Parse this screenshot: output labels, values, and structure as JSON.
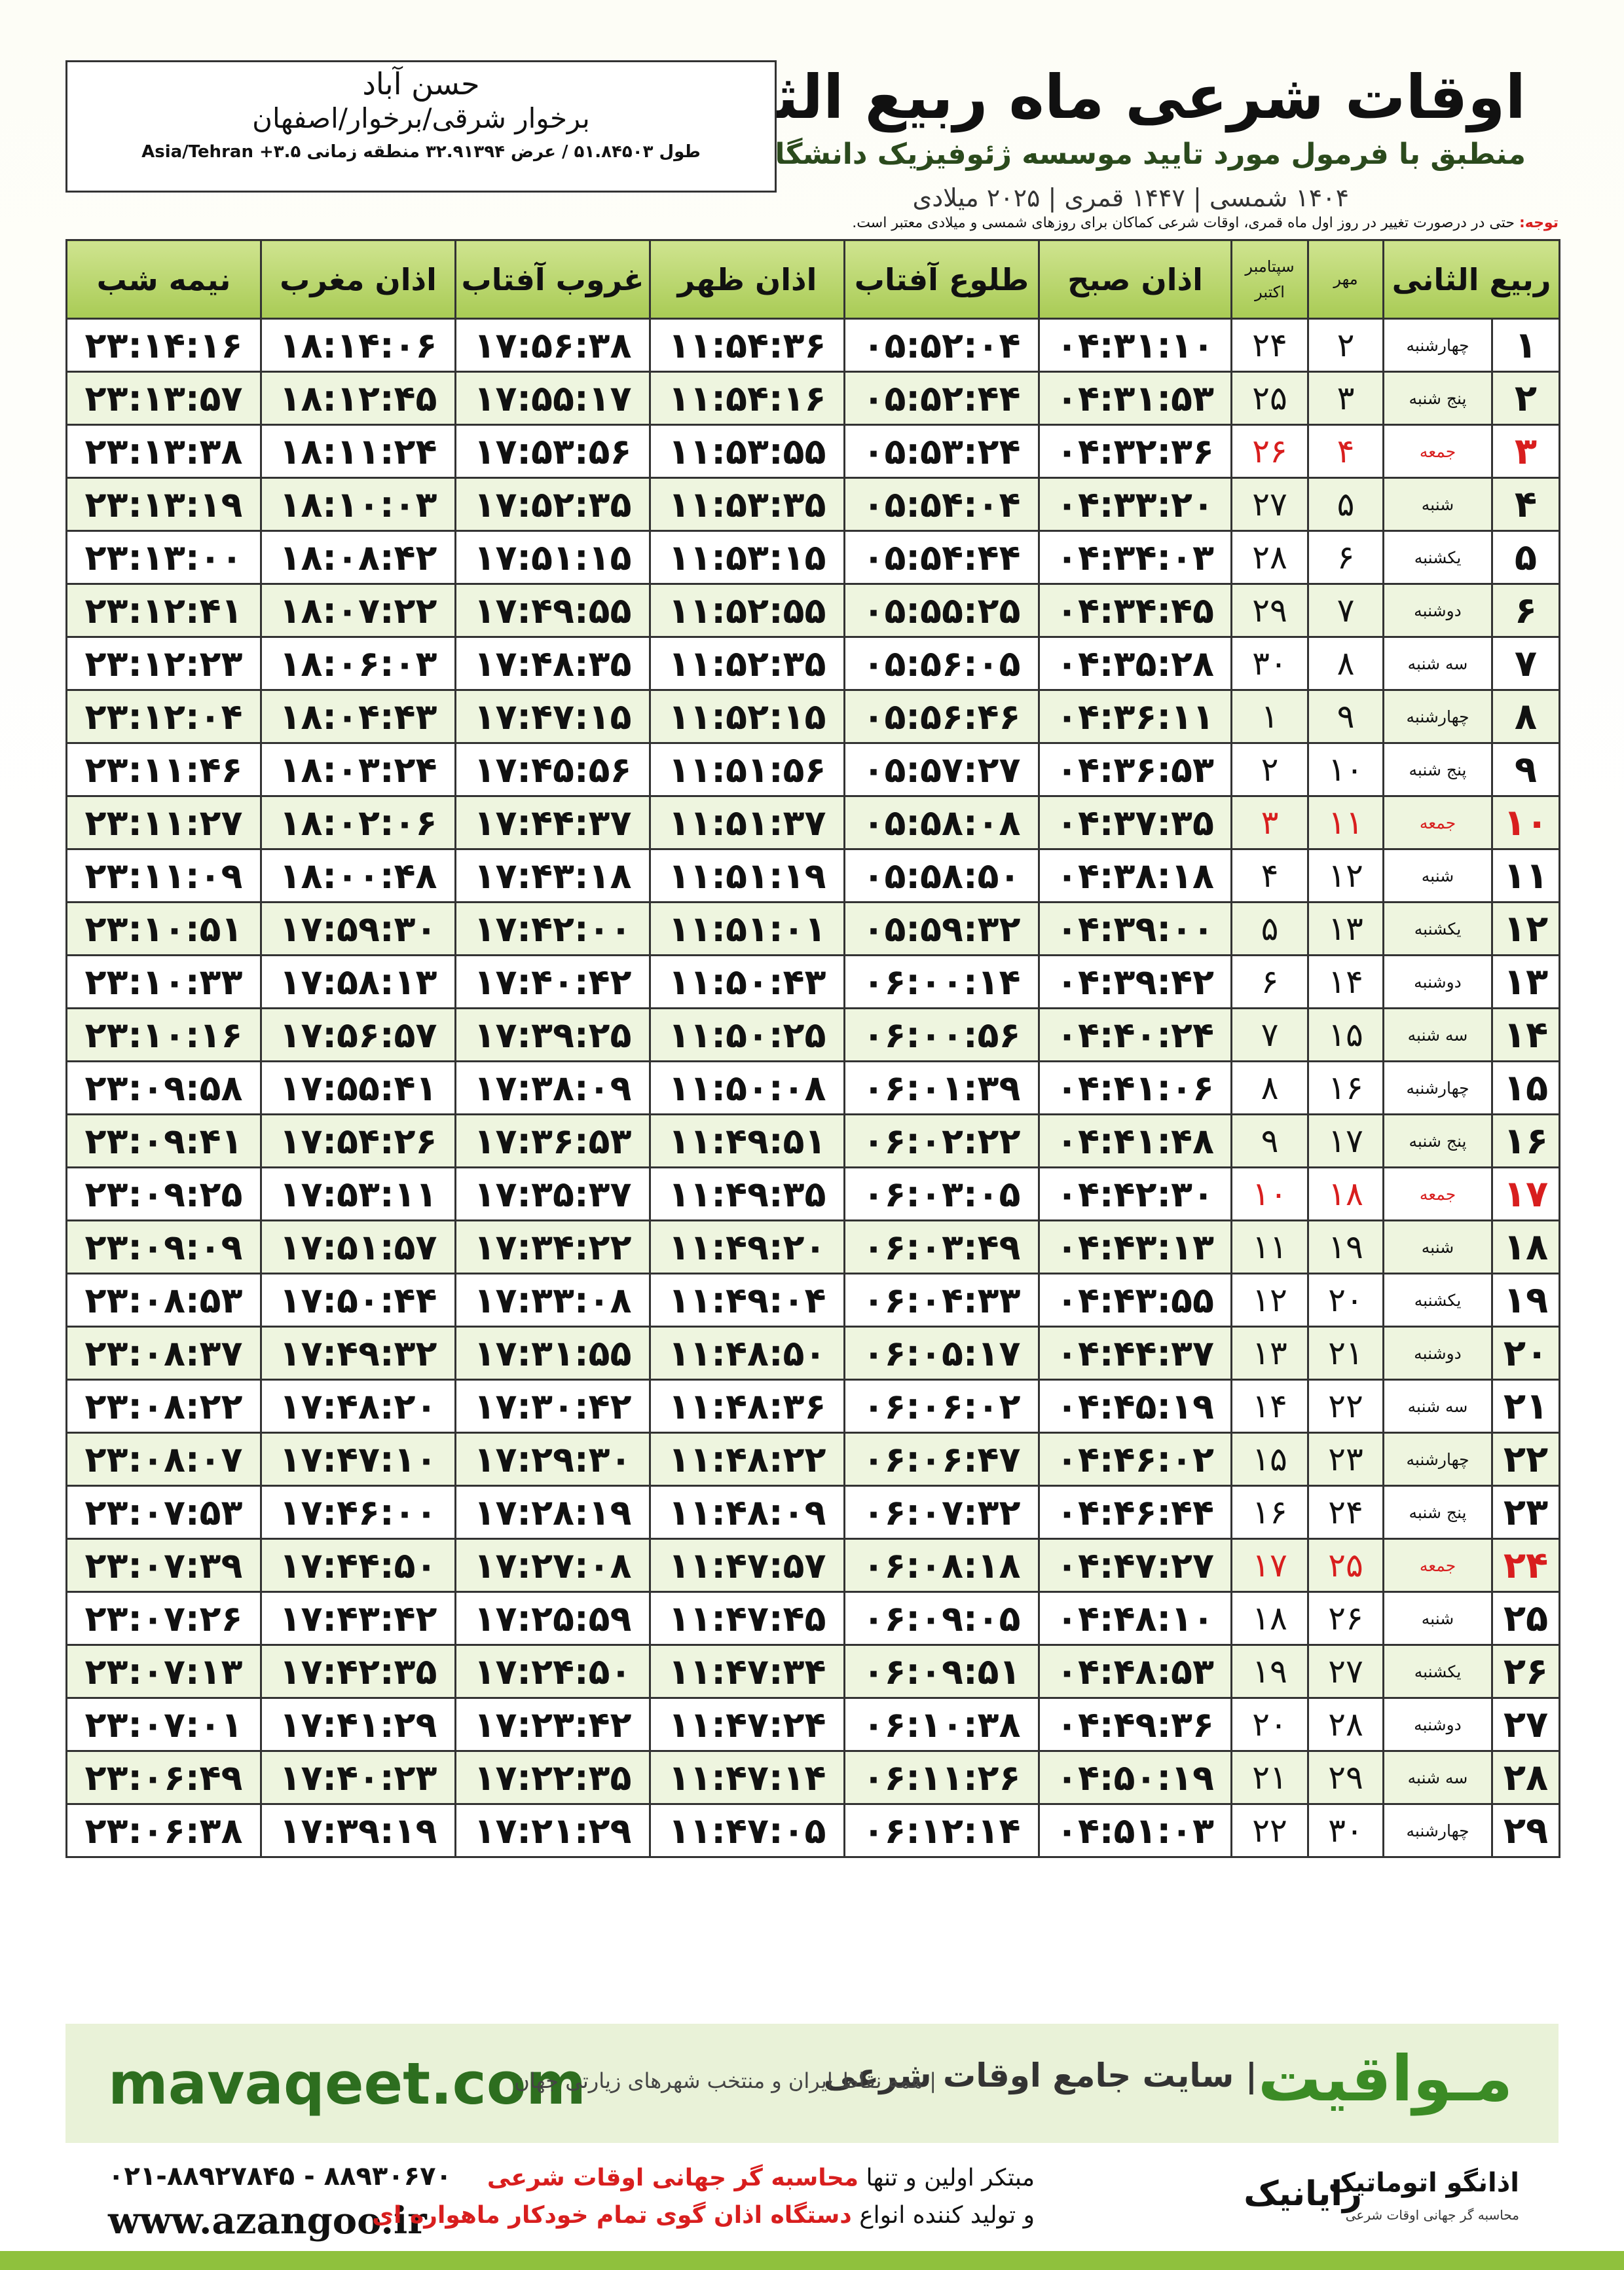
{
  "header": {
    "title": "اوقات شرعی ماه ربیع الثانی",
    "subtitle": "منطبق با فرمول مورد تایید موسسه ژئوفیزیک دانشگاه تهران",
    "dates": "۱۴۰۴ شمسی | ۱۴۴۷ قمری | ۲۰۲۵ میلادی"
  },
  "location": {
    "name": "حسن آباد",
    "region": "برخوار شرقی/برخوار/اصفهان",
    "coords": "طول ۵۱.۸۴۵۰۳ / عرض ۳۲.۹۱۳۹۴ منطقه زمانی ۳.۵+ Asia/Tehran"
  },
  "note": {
    "label": "توجه:",
    "text": "حتی در درصورت تغییر در روز اول ماه قمری، اوقات شرعی کماکان برای روزهای شمسی و میلادی معتبر است."
  },
  "table": {
    "headers": [
      "ربیع الثانی",
      "مهر",
      [
        "سپتامبر",
        "اکتبر"
      ],
      "اذان صبح",
      "طلوع آفتاب",
      "اذان ظهر",
      "غروب آفتاب",
      "اذان مغرب",
      "نیمه شب"
    ],
    "highlight_rows": [
      2,
      9,
      16,
      23
    ],
    "highlight_color": "#d81e1e",
    "rows": [
      [
        "۱",
        "چهارشنبه",
        "۲",
        "۲۴",
        "۰۴:۳۱:۱۰",
        "۰۵:۵۲:۰۴",
        "۱۱:۵۴:۳۶",
        "۱۷:۵۶:۳۸",
        "۱۸:۱۴:۰۶",
        "۲۳:۱۴:۱۶"
      ],
      [
        "۲",
        "پنج شنبه",
        "۳",
        "۲۵",
        "۰۴:۳۱:۵۳",
        "۰۵:۵۲:۴۴",
        "۱۱:۵۴:۱۶",
        "۱۷:۵۵:۱۷",
        "۱۸:۱۲:۴۵",
        "۲۳:۱۳:۵۷"
      ],
      [
        "۳",
        "جمعه",
        "۴",
        "۲۶",
        "۰۴:۳۲:۳۶",
        "۰۵:۵۳:۲۴",
        "۱۱:۵۳:۵۵",
        "۱۷:۵۳:۵۶",
        "۱۸:۱۱:۲۴",
        "۲۳:۱۳:۳۸"
      ],
      [
        "۴",
        "شنبه",
        "۵",
        "۲۷",
        "۰۴:۳۳:۲۰",
        "۰۵:۵۴:۰۴",
        "۱۱:۵۳:۳۵",
        "۱۷:۵۲:۳۵",
        "۱۸:۱۰:۰۳",
        "۲۳:۱۳:۱۹"
      ],
      [
        "۵",
        "یکشنبه",
        "۶",
        "۲۸",
        "۰۴:۳۴:۰۳",
        "۰۵:۵۴:۴۴",
        "۱۱:۵۳:۱۵",
        "۱۷:۵۱:۱۵",
        "۱۸:۰۸:۴۲",
        "۲۳:۱۳:۰۰"
      ],
      [
        "۶",
        "دوشنبه",
        "۷",
        "۲۹",
        "۰۴:۳۴:۴۵",
        "۰۵:۵۵:۲۵",
        "۱۱:۵۲:۵۵",
        "۱۷:۴۹:۵۵",
        "۱۸:۰۷:۲۲",
        "۲۳:۱۲:۴۱"
      ],
      [
        "۷",
        "سه شنبه",
        "۸",
        "۳۰",
        "۰۴:۳۵:۲۸",
        "۰۵:۵۶:۰۵",
        "۱۱:۵۲:۳۵",
        "۱۷:۴۸:۳۵",
        "۱۸:۰۶:۰۳",
        "۲۳:۱۲:۲۳"
      ],
      [
        "۸",
        "چهارشنبه",
        "۹",
        "۱",
        "۰۴:۳۶:۱۱",
        "۰۵:۵۶:۴۶",
        "۱۱:۵۲:۱۵",
        "۱۷:۴۷:۱۵",
        "۱۸:۰۴:۴۳",
        "۲۳:۱۲:۰۴"
      ],
      [
        "۹",
        "پنج شنبه",
        "۱۰",
        "۲",
        "۰۴:۳۶:۵۳",
        "۰۵:۵۷:۲۷",
        "۱۱:۵۱:۵۶",
        "۱۷:۴۵:۵۶",
        "۱۸:۰۳:۲۴",
        "۲۳:۱۱:۴۶"
      ],
      [
        "۱۰",
        "جمعه",
        "۱۱",
        "۳",
        "۰۴:۳۷:۳۵",
        "۰۵:۵۸:۰۸",
        "۱۱:۵۱:۳۷",
        "۱۷:۴۴:۳۷",
        "۱۸:۰۲:۰۶",
        "۲۳:۱۱:۲۷"
      ],
      [
        "۱۱",
        "شنبه",
        "۱۲",
        "۴",
        "۰۴:۳۸:۱۸",
        "۰۵:۵۸:۵۰",
        "۱۱:۵۱:۱۹",
        "۱۷:۴۳:۱۸",
        "۱۸:۰۰:۴۸",
        "۲۳:۱۱:۰۹"
      ],
      [
        "۱۲",
        "یکشنبه",
        "۱۳",
        "۵",
        "۰۴:۳۹:۰۰",
        "۰۵:۵۹:۳۲",
        "۱۱:۵۱:۰۱",
        "۱۷:۴۲:۰۰",
        "۱۷:۵۹:۳۰",
        "۲۳:۱۰:۵۱"
      ],
      [
        "۱۳",
        "دوشنبه",
        "۱۴",
        "۶",
        "۰۴:۳۹:۴۲",
        "۰۶:۰۰:۱۴",
        "۱۱:۵۰:۴۳",
        "۱۷:۴۰:۴۲",
        "۱۷:۵۸:۱۳",
        "۲۳:۱۰:۳۳"
      ],
      [
        "۱۴",
        "سه شنبه",
        "۱۵",
        "۷",
        "۰۴:۴۰:۲۴",
        "۰۶:۰۰:۵۶",
        "۱۱:۵۰:۲۵",
        "۱۷:۳۹:۲۵",
        "۱۷:۵۶:۵۷",
        "۲۳:۱۰:۱۶"
      ],
      [
        "۱۵",
        "چهارشنبه",
        "۱۶",
        "۸",
        "۰۴:۴۱:۰۶",
        "۰۶:۰۱:۳۹",
        "۱۱:۵۰:۰۸",
        "۱۷:۳۸:۰۹",
        "۱۷:۵۵:۴۱",
        "۲۳:۰۹:۵۸"
      ],
      [
        "۱۶",
        "پنج شنبه",
        "۱۷",
        "۹",
        "۰۴:۴۱:۴۸",
        "۰۶:۰۲:۲۲",
        "۱۱:۴۹:۵۱",
        "۱۷:۳۶:۵۳",
        "۱۷:۵۴:۲۶",
        "۲۳:۰۹:۴۱"
      ],
      [
        "۱۷",
        "جمعه",
        "۱۸",
        "۱۰",
        "۰۴:۴۲:۳۰",
        "۰۶:۰۳:۰۵",
        "۱۱:۴۹:۳۵",
        "۱۷:۳۵:۳۷",
        "۱۷:۵۳:۱۱",
        "۲۳:۰۹:۲۵"
      ],
      [
        "۱۸",
        "شنبه",
        "۱۹",
        "۱۱",
        "۰۴:۴۳:۱۳",
        "۰۶:۰۳:۴۹",
        "۱۱:۴۹:۲۰",
        "۱۷:۳۴:۲۲",
        "۱۷:۵۱:۵۷",
        "۲۳:۰۹:۰۹"
      ],
      [
        "۱۹",
        "یکشنبه",
        "۲۰",
        "۱۲",
        "۰۴:۴۳:۵۵",
        "۰۶:۰۴:۳۳",
        "۱۱:۴۹:۰۴",
        "۱۷:۳۳:۰۸",
        "۱۷:۵۰:۴۴",
        "۲۳:۰۸:۵۳"
      ],
      [
        "۲۰",
        "دوشنبه",
        "۲۱",
        "۱۳",
        "۰۴:۴۴:۳۷",
        "۰۶:۰۵:۱۷",
        "۱۱:۴۸:۵۰",
        "۱۷:۳۱:۵۵",
        "۱۷:۴۹:۳۲",
        "۲۳:۰۸:۳۷"
      ],
      [
        "۲۱",
        "سه شنبه",
        "۲۲",
        "۱۴",
        "۰۴:۴۵:۱۹",
        "۰۶:۰۶:۰۲",
        "۱۱:۴۸:۳۶",
        "۱۷:۳۰:۴۲",
        "۱۷:۴۸:۲۰",
        "۲۳:۰۸:۲۲"
      ],
      [
        "۲۲",
        "چهارشنبه",
        "۲۳",
        "۱۵",
        "۰۴:۴۶:۰۲",
        "۰۶:۰۶:۴۷",
        "۱۱:۴۸:۲۲",
        "۱۷:۲۹:۳۰",
        "۱۷:۴۷:۱۰",
        "۲۳:۰۸:۰۷"
      ],
      [
        "۲۳",
        "پنج شنبه",
        "۲۴",
        "۱۶",
        "۰۴:۴۶:۴۴",
        "۰۶:۰۷:۳۲",
        "۱۱:۴۸:۰۹",
        "۱۷:۲۸:۱۹",
        "۱۷:۴۶:۰۰",
        "۲۳:۰۷:۵۳"
      ],
      [
        "۲۴",
        "جمعه",
        "۲۵",
        "۱۷",
        "۰۴:۴۷:۲۷",
        "۰۶:۰۸:۱۸",
        "۱۱:۴۷:۵۷",
        "۱۷:۲۷:۰۸",
        "۱۷:۴۴:۵۰",
        "۲۳:۰۷:۳۹"
      ],
      [
        "۲۵",
        "شنبه",
        "۲۶",
        "۱۸",
        "۰۴:۴۸:۱۰",
        "۰۶:۰۹:۰۵",
        "۱۱:۴۷:۴۵",
        "۱۷:۲۵:۵۹",
        "۱۷:۴۳:۴۲",
        "۲۳:۰۷:۲۶"
      ],
      [
        "۲۶",
        "یکشنبه",
        "۲۷",
        "۱۹",
        "۰۴:۴۸:۵۳",
        "۰۶:۰۹:۵۱",
        "۱۱:۴۷:۳۴",
        "۱۷:۲۴:۵۰",
        "۱۷:۴۲:۳۵",
        "۲۳:۰۷:۱۳"
      ],
      [
        "۲۷",
        "دوشنبه",
        "۲۸",
        "۲۰",
        "۰۴:۴۹:۳۶",
        "۰۶:۱۰:۳۸",
        "۱۱:۴۷:۲۴",
        "۱۷:۲۳:۴۲",
        "۱۷:۴۱:۲۹",
        "۲۳:۰۷:۰۱"
      ],
      [
        "۲۸",
        "سه شنبه",
        "۲۹",
        "۲۱",
        "۰۴:۵۰:۱۹",
        "۰۶:۱۱:۲۶",
        "۱۱:۴۷:۱۴",
        "۱۷:۲۲:۳۵",
        "۱۷:۴۰:۲۳",
        "۲۳:۰۶:۴۹"
      ],
      [
        "۲۹",
        "چهارشنبه",
        "۳۰",
        "۲۲",
        "۰۴:۵۱:۰۳",
        "۰۶:۱۲:۱۴",
        "۱۱:۴۷:۰۵",
        "۱۷:۲۱:۲۹",
        "۱۷:۳۹:۱۹",
        "۲۳:۰۶:۳۸"
      ]
    ]
  },
  "footer": {
    "site": "mavaqeet.com",
    "brand": "مـواقیت",
    "tagline": "| سایت جامع اوقات شرعی",
    "coverage": "| همه نقاط ایران و منتخب شهرهای زیارتی جهان"
  },
  "contact": {
    "phone": "۰۲۱-۸۸۹۲۷۸۴۵ - ۸۸۹۳۰۶۷۰",
    "website": "www.azangoo.ir",
    "promo1": [
      "مبتکر اولین و تنها",
      "محاسبه گر جهانی اوقات شرعی"
    ],
    "promo2": [
      "و تولید کننده انواع",
      "دستگاه اذان گوی تمام خودکار ماهواره ای"
    ],
    "logo1": "رایانیک",
    "logo2": "اذانگو اتوماتیک",
    "logo2_sub": "محاسبه گر جهانی اوقات شرعی"
  }
}
